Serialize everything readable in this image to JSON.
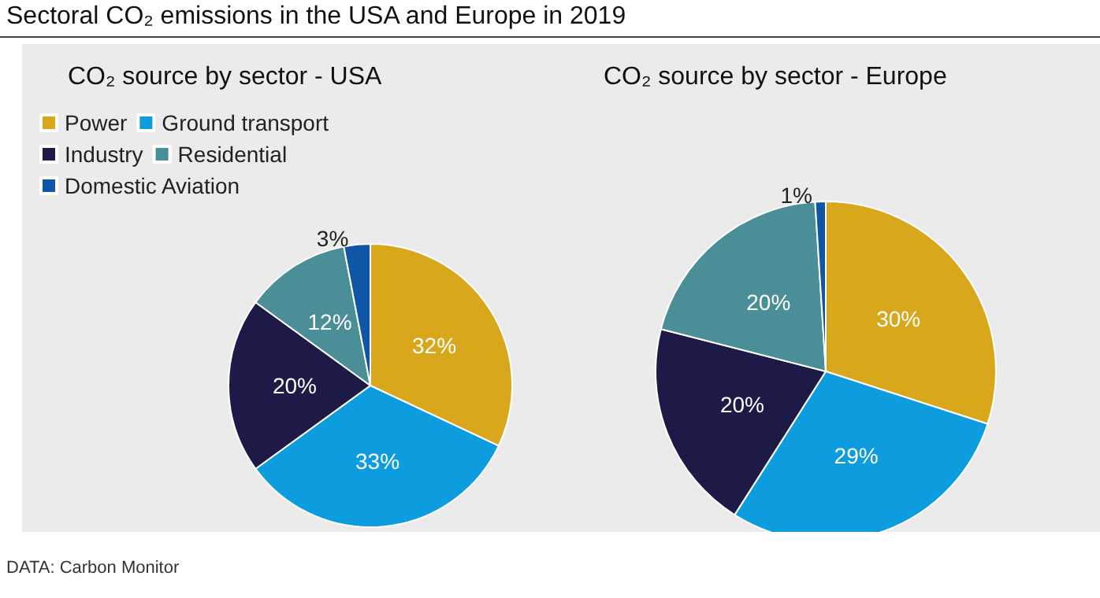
{
  "chart_data": [
    {
      "type": "other",
      "title": "Sectoral CO₂ emissions in the USA and Europe in 2019",
      "annotations": [
        "DATA: Carbon Monitor"
      ]
    },
    {
      "type": "pie",
      "title": "CO₂ source by sector - USA",
      "categories": [
        "Power",
        "Ground transport",
        "Industry",
        "Residential",
        "Domestic Aviation"
      ],
      "values": [
        32,
        33,
        20,
        12,
        3
      ],
      "value_labels": [
        "32%",
        "33%",
        "20%",
        "12%",
        "3%"
      ],
      "colors": [
        "#d8a71b",
        "#0d9ddf",
        "#1e1a48",
        "#4a8e98",
        "#0f56a6"
      ],
      "legend": "top left"
    },
    {
      "type": "pie",
      "title": "CO₂ source by sector - Europe",
      "categories": [
        null,
        null,
        null,
        null,
        null
      ],
      "values": [
        30,
        29,
        20,
        20,
        1
      ],
      "value_labels": [
        "30%",
        "29%",
        "20%",
        "20%",
        "1%"
      ],
      "colors": [
        "#d8a71b",
        "#0d9ddf",
        "#1e1a48",
        "#4a8e98",
        "#0f56a6"
      ],
      "legend": false
    }
  ]
}
